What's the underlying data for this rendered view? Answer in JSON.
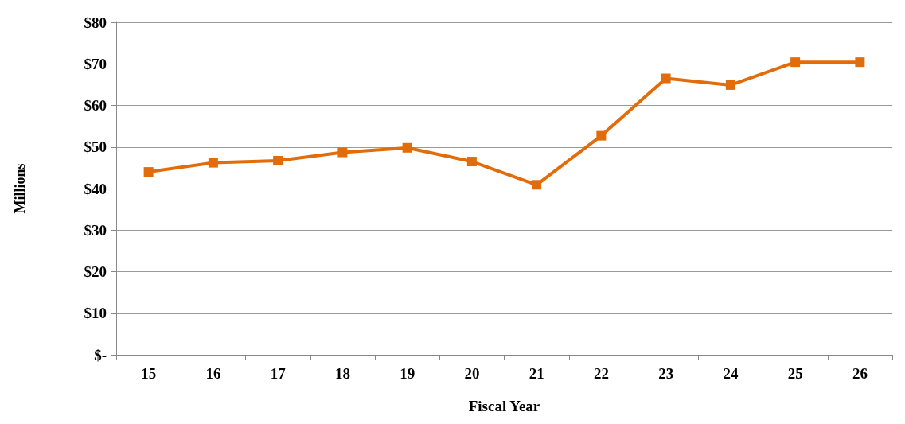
{
  "chart_data": {
    "type": "line",
    "xlabel": "Fiscal Year",
    "ylabel": "Millions",
    "categories": [
      "15",
      "16",
      "17",
      "18",
      "19",
      "20",
      "21",
      "22",
      "23",
      "24",
      "25",
      "26"
    ],
    "series": [
      {
        "color": "#e36c0a",
        "values": [
          44.0,
          46.2,
          46.7,
          48.7,
          49.8,
          46.5,
          40.9,
          52.7,
          66.5,
          64.9,
          70.4,
          70.4
        ]
      }
    ],
    "ylim": [
      0,
      80
    ],
    "yticks": [
      {
        "value": 0,
        "label": "$-"
      },
      {
        "value": 10,
        "label": "$10"
      },
      {
        "value": 20,
        "label": "$20"
      },
      {
        "value": 30,
        "label": "$30"
      },
      {
        "value": 40,
        "label": "$40"
      },
      {
        "value": 50,
        "label": "$50"
      },
      {
        "value": 60,
        "label": "$60"
      },
      {
        "value": 70,
        "label": "$70"
      },
      {
        "value": 80,
        "label": "$80"
      }
    ],
    "grid": "y",
    "marker": "square",
    "line_style": "solid"
  }
}
